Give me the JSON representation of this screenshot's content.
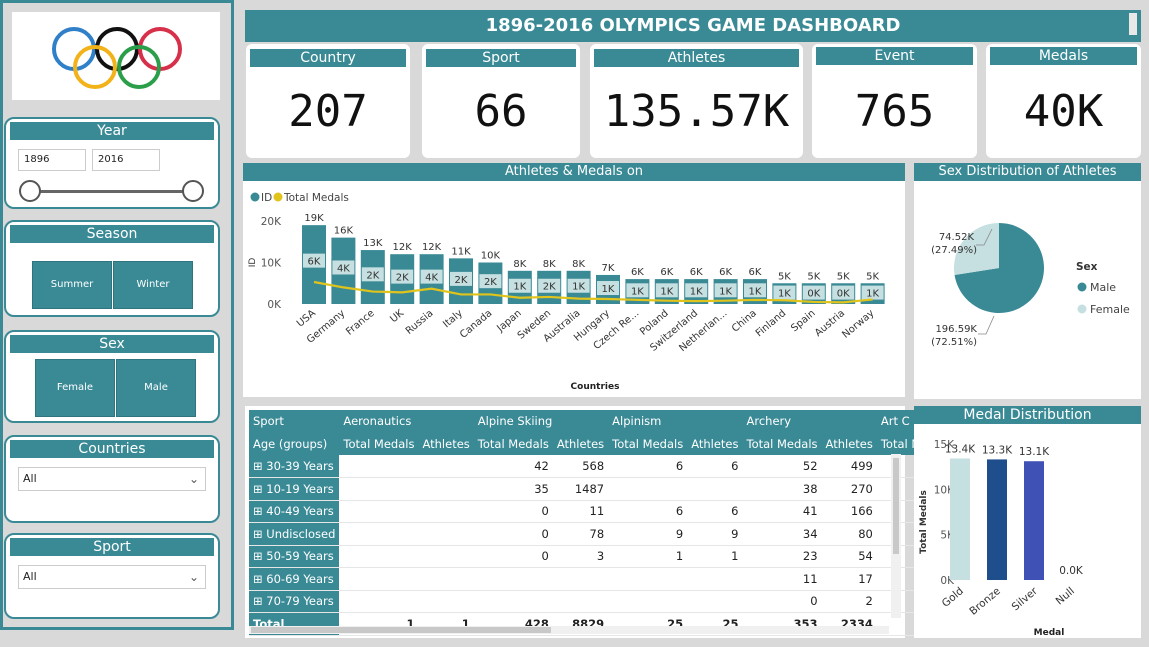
{
  "title": "1896-2016 OLYMPICS GAME DASHBOARD",
  "colors": {
    "accent": "#3a8a96",
    "light": "#c6dfe0",
    "gold_line": "#e1c41b",
    "silver_bar": "#3f51b5",
    "bronze_bar": "#1f4e8c"
  },
  "filters": {
    "year": {
      "label": "Year",
      "from": "1896",
      "to": "2016"
    },
    "season": {
      "label": "Season",
      "options": [
        "Summer",
        "Winter"
      ]
    },
    "sex": {
      "label": "Sex",
      "options": [
        "Female",
        "Male"
      ]
    },
    "countries": {
      "label": "Countries",
      "value": "All"
    },
    "sport": {
      "label": "Sport",
      "value": "All"
    }
  },
  "kpis": [
    {
      "label": "Country",
      "value": "207"
    },
    {
      "label": "Sport",
      "value": "66"
    },
    {
      "label": "Athletes",
      "value": "135.57K"
    },
    {
      "label": "Event",
      "value": "765"
    },
    {
      "label": "Medals",
      "value": "40K"
    }
  ],
  "chart_data": [
    {
      "type": "bar",
      "title": "Athletes & Medals on",
      "xlabel": "Countries",
      "ylabel": "ID",
      "legend": [
        "ID",
        "Total Medals"
      ],
      "ylim": [
        0,
        20000
      ],
      "yticks": [
        "0K",
        "10K",
        "20K"
      ],
      "categories": [
        "USA",
        "Germany",
        "France",
        "UK",
        "Russia",
        "Italy",
        "Canada",
        "Japan",
        "Sweden",
        "Australia",
        "Hungary",
        "Czech Re...",
        "Poland",
        "Switzerland",
        "Netherlan...",
        "China",
        "Finland",
        "Spain",
        "Austria",
        "Norway"
      ],
      "series": [
        {
          "name": "ID",
          "values": [
            19000,
            16000,
            13000,
            12000,
            12000,
            11000,
            10000,
            8000,
            8000,
            8000,
            7000,
            6000,
            6000,
            6000,
            6000,
            6000,
            5000,
            5000,
            5000,
            5000
          ],
          "labels": [
            "19K",
            "16K",
            "13K",
            "12K",
            "12K",
            "11K",
            "10K",
            "8K",
            "8K",
            "8K",
            "7K",
            "6K",
            "6K",
            "6K",
            "6K",
            "6K",
            "5K",
            "5K",
            "5K",
            "5K"
          ]
        },
        {
          "name": "Total Medals",
          "values": [
            6000,
            4000,
            2000,
            2000,
            4000,
            2000,
            2000,
            1000,
            2000,
            1000,
            1000,
            1000,
            1000,
            1000,
            1000,
            1000,
            1000,
            0,
            0,
            1000
          ],
          "labels": [
            "6K",
            "4K",
            "2K",
            "2K",
            "4K",
            "2K",
            "2K",
            "1K",
            "2K",
            "1K",
            "1K",
            "1K",
            "1K",
            "1K",
            "1K",
            "1K",
            "1K",
            "0K",
            "0K",
            "1K"
          ]
        }
      ]
    },
    {
      "type": "pie",
      "title": "Sex Distribution of Athletes",
      "legend_title": "Sex",
      "slices": [
        {
          "name": "Male",
          "value": 196590,
          "label": "196.59K",
          "pct": "(72.51%)"
        },
        {
          "name": "Female",
          "value": 74520,
          "label": "74.52K",
          "pct": "(27.49%)"
        }
      ]
    },
    {
      "type": "bar",
      "title": "Medal Distribution",
      "xlabel": "Medal",
      "ylabel": "Total Medals",
      "ylim": [
        0,
        15000
      ],
      "yticks": [
        "0K",
        "5K",
        "10K",
        "15K"
      ],
      "categories": [
        "Gold",
        "Bronze",
        "Silver",
        "Null"
      ],
      "values": [
        13400,
        13300,
        13100,
        0
      ],
      "labels": [
        "13.4K",
        "13.3K",
        "13.1K",
        "0.0K"
      ]
    }
  ],
  "matrix": {
    "sport_header": "Sport",
    "age_header": "Age (groups)",
    "sports": [
      "Aeronautics",
      "Alpine Skiing",
      "Alpinism",
      "Archery",
      "Art C"
    ],
    "sub_headers": [
      "Total Medals",
      "Athletes"
    ],
    "rows": [
      {
        "label": "30-39 Years",
        "cells": [
          "",
          "",
          "42",
          "568",
          "6",
          "6",
          "52",
          "499"
        ]
      },
      {
        "label": "10-19 Years",
        "cells": [
          "",
          "",
          "35",
          "1487",
          "",
          "",
          "38",
          "270"
        ]
      },
      {
        "label": "40-49 Years",
        "cells": [
          "",
          "",
          "0",
          "11",
          "6",
          "6",
          "41",
          "166"
        ]
      },
      {
        "label": "Undisclosed",
        "cells": [
          "",
          "",
          "0",
          "78",
          "9",
          "9",
          "34",
          "80"
        ]
      },
      {
        "label": "50-59 Years",
        "cells": [
          "",
          "",
          "0",
          "3",
          "1",
          "1",
          "23",
          "54"
        ]
      },
      {
        "label": "60-69 Years",
        "cells": [
          "",
          "",
          "",
          "",
          "",
          "",
          "11",
          "17"
        ]
      },
      {
        "label": "70-79 Years",
        "cells": [
          "",
          "",
          "",
          "",
          "",
          "",
          "0",
          "2"
        ]
      }
    ],
    "total": {
      "label": "Total",
      "cells": [
        "1",
        "1",
        "428",
        "8829",
        "25",
        "25",
        "353",
        "2334"
      ]
    }
  }
}
